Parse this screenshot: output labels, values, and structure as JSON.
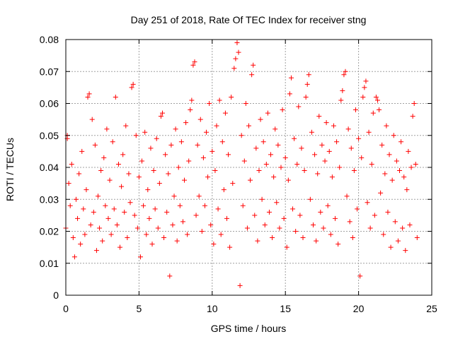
{
  "chart_data": {
    "type": "scatter",
    "title": "Day 251 of 2018, Rate Of TEC Index for receiver stng",
    "xlabel": "GPS time / hours",
    "ylabel": "ROTI / TECUs",
    "xlim": [
      0,
      25
    ],
    "ylim": [
      0,
      0.08
    ],
    "xticks": [
      0,
      5,
      10,
      15,
      20,
      25
    ],
    "xtick_labels": [
      "0",
      "5",
      "10",
      "15",
      "20",
      "25"
    ],
    "yticks": [
      0,
      0.01,
      0.02,
      0.03,
      0.04,
      0.05,
      0.06,
      0.07,
      0.08
    ],
    "ytick_labels": [
      "0",
      "0.01",
      "0.02",
      "0.03",
      "0.04",
      "0.05",
      "0.06",
      "0.07",
      "0.08"
    ],
    "grid": true,
    "marker": "+",
    "series_color": "#ff0000",
    "series": [
      {
        "name": "ROTI",
        "points": [
          [
            0.0,
            0.021
          ],
          [
            0.1,
            0.049
          ],
          [
            0.1,
            0.05
          ],
          [
            0.2,
            0.035
          ],
          [
            0.3,
            0.028
          ],
          [
            0.4,
            0.041
          ],
          [
            0.5,
            0.018
          ],
          [
            0.6,
            0.012
          ],
          [
            0.7,
            0.03
          ],
          [
            0.8,
            0.024
          ],
          [
            0.9,
            0.038
          ],
          [
            1.0,
            0.016
          ],
          [
            1.1,
            0.045
          ],
          [
            1.2,
            0.027
          ],
          [
            1.3,
            0.019
          ],
          [
            1.4,
            0.033
          ],
          [
            1.5,
            0.062
          ],
          [
            1.6,
            0.063
          ],
          [
            1.7,
            0.022
          ],
          [
            1.8,
            0.055
          ],
          [
            1.9,
            0.026
          ],
          [
            2.0,
            0.047
          ],
          [
            2.1,
            0.014
          ],
          [
            2.2,
            0.031
          ],
          [
            2.3,
            0.021
          ],
          [
            2.4,
            0.039
          ],
          [
            2.5,
            0.017
          ],
          [
            2.6,
            0.043
          ],
          [
            2.7,
            0.028
          ],
          [
            2.8,
            0.052
          ],
          [
            2.9,
            0.024
          ],
          [
            3.0,
            0.036
          ],
          [
            3.1,
            0.019
          ],
          [
            3.2,
            0.048
          ],
          [
            3.3,
            0.027
          ],
          [
            3.4,
            0.062
          ],
          [
            3.5,
            0.022
          ],
          [
            3.6,
            0.041
          ],
          [
            3.7,
            0.015
          ],
          [
            3.8,
            0.034
          ],
          [
            3.9,
            0.044
          ],
          [
            4.0,
            0.026
          ],
          [
            4.1,
            0.053
          ],
          [
            4.2,
            0.018
          ],
          [
            4.3,
            0.038
          ],
          [
            4.4,
            0.029
          ],
          [
            4.5,
            0.065
          ],
          [
            4.6,
            0.066
          ],
          [
            4.7,
            0.025
          ],
          [
            4.8,
            0.05
          ],
          [
            4.9,
            0.021
          ],
          [
            5.0,
            0.037
          ],
          [
            5.1,
            0.012
          ],
          [
            5.2,
            0.042
          ],
          [
            5.3,
            0.028
          ],
          [
            5.4,
            0.051
          ],
          [
            5.5,
            0.019
          ],
          [
            5.6,
            0.033
          ],
          [
            5.7,
            0.024
          ],
          [
            5.8,
            0.046
          ],
          [
            5.9,
            0.016
          ],
          [
            6.0,
            0.039
          ],
          [
            6.1,
            0.027
          ],
          [
            6.2,
            0.049
          ],
          [
            6.3,
            0.021
          ],
          [
            6.4,
            0.035
          ],
          [
            6.5,
            0.056
          ],
          [
            6.6,
            0.057
          ],
          [
            6.7,
            0.018
          ],
          [
            6.8,
            0.044
          ],
          [
            6.9,
            0.026
          ],
          [
            7.0,
            0.038
          ],
          [
            7.1,
            0.006
          ],
          [
            7.2,
            0.047
          ],
          [
            7.3,
            0.022
          ],
          [
            7.4,
            0.031
          ],
          [
            7.5,
            0.052
          ],
          [
            7.6,
            0.017
          ],
          [
            7.7,
            0.04
          ],
          [
            7.8,
            0.028
          ],
          [
            7.9,
            0.048
          ],
          [
            8.0,
            0.023
          ],
          [
            8.1,
            0.036
          ],
          [
            8.2,
            0.054
          ],
          [
            8.3,
            0.019
          ],
          [
            8.4,
            0.042
          ],
          [
            8.5,
            0.058
          ],
          [
            8.6,
            0.061
          ],
          [
            8.7,
            0.072
          ],
          [
            8.8,
            0.073
          ],
          [
            8.9,
            0.025
          ],
          [
            9.0,
            0.047
          ],
          [
            9.1,
            0.031
          ],
          [
            9.2,
            0.055
          ],
          [
            9.3,
            0.02
          ],
          [
            9.4,
            0.043
          ],
          [
            9.5,
            0.028
          ],
          [
            9.6,
            0.051
          ],
          [
            9.7,
            0.037
          ],
          [
            9.8,
            0.06
          ],
          [
            9.9,
            0.022
          ],
          [
            10.0,
            0.045
          ],
          [
            10.1,
            0.016
          ],
          [
            10.2,
            0.039
          ],
          [
            10.3,
            0.053
          ],
          [
            10.4,
            0.027
          ],
          [
            10.5,
            0.061
          ],
          [
            10.6,
            0.019
          ],
          [
            10.7,
            0.048
          ],
          [
            10.8,
            0.033
          ],
          [
            10.9,
            0.057
          ],
          [
            11.0,
            0.024
          ],
          [
            11.1,
            0.044
          ],
          [
            11.2,
            0.015
          ],
          [
            11.3,
            0.062
          ],
          [
            11.4,
            0.035
          ],
          [
            11.5,
            0.071
          ],
          [
            11.6,
            0.074
          ],
          [
            11.7,
            0.079
          ],
          [
            11.8,
            0.076
          ],
          [
            11.9,
            0.003
          ],
          [
            12.0,
            0.05
          ],
          [
            12.1,
            0.028
          ],
          [
            12.2,
            0.042
          ],
          [
            12.3,
            0.06
          ],
          [
            12.4,
            0.021
          ],
          [
            12.5,
            0.053
          ],
          [
            12.6,
            0.036
          ],
          [
            12.7,
            0.069
          ],
          [
            12.8,
            0.072
          ],
          [
            12.9,
            0.025
          ],
          [
            13.0,
            0.046
          ],
          [
            13.1,
            0.017
          ],
          [
            13.2,
            0.039
          ],
          [
            13.3,
            0.055
          ],
          [
            13.4,
            0.03
          ],
          [
            13.5,
            0.048
          ],
          [
            13.6,
            0.022
          ],
          [
            13.7,
            0.041
          ],
          [
            13.8,
            0.057
          ],
          [
            13.9,
            0.026
          ],
          [
            14.0,
            0.044
          ],
          [
            14.1,
            0.018
          ],
          [
            14.2,
            0.037
          ],
          [
            14.3,
            0.052
          ],
          [
            14.4,
            0.029
          ],
          [
            14.5,
            0.047
          ],
          [
            14.6,
            0.021
          ],
          [
            14.7,
            0.04
          ],
          [
            14.8,
            0.058
          ],
          [
            14.9,
            0.024
          ],
          [
            15.0,
            0.043
          ],
          [
            15.1,
            0.015
          ],
          [
            15.2,
            0.036
          ],
          [
            15.3,
            0.063
          ],
          [
            15.4,
            0.068
          ],
          [
            15.5,
            0.027
          ],
          [
            15.6,
            0.049
          ],
          [
            15.7,
            0.02
          ],
          [
            15.8,
            0.041
          ],
          [
            15.9,
            0.059
          ],
          [
            16.0,
            0.025
          ],
          [
            16.1,
            0.046
          ],
          [
            16.2,
            0.018
          ],
          [
            16.3,
            0.039
          ],
          [
            16.4,
            0.062
          ],
          [
            16.5,
            0.066
          ],
          [
            16.6,
            0.069
          ],
          [
            16.7,
            0.03
          ],
          [
            16.8,
            0.051
          ],
          [
            16.9,
            0.022
          ],
          [
            17.0,
            0.044
          ],
          [
            17.1,
            0.017
          ],
          [
            17.2,
            0.038
          ],
          [
            17.3,
            0.056
          ],
          [
            17.4,
            0.026
          ],
          [
            17.5,
            0.047
          ],
          [
            17.6,
            0.021
          ],
          [
            17.7,
            0.042
          ],
          [
            17.8,
            0.054
          ],
          [
            17.9,
            0.028
          ],
          [
            18.0,
            0.045
          ],
          [
            18.1,
            0.019
          ],
          [
            18.2,
            0.037
          ],
          [
            18.3,
            0.053
          ],
          [
            18.4,
            0.024
          ],
          [
            18.5,
            0.048
          ],
          [
            18.6,
            0.016
          ],
          [
            18.7,
            0.04
          ],
          [
            18.8,
            0.061
          ],
          [
            18.9,
            0.064
          ],
          [
            19.0,
            0.069
          ],
          [
            19.1,
            0.07
          ],
          [
            19.2,
            0.031
          ],
          [
            19.3,
            0.052
          ],
          [
            19.4,
            0.023
          ],
          [
            19.5,
            0.046
          ],
          [
            19.6,
            0.018
          ],
          [
            19.7,
            0.039
          ],
          [
            19.8,
            0.058
          ],
          [
            19.9,
            0.027
          ],
          [
            20.0,
            0.049
          ],
          [
            20.1,
            0.006
          ],
          [
            20.2,
            0.043
          ],
          [
            20.3,
            0.062
          ],
          [
            20.4,
            0.065
          ],
          [
            20.5,
            0.067
          ],
          [
            20.6,
            0.029
          ],
          [
            20.7,
            0.051
          ],
          [
            20.8,
            0.021
          ],
          [
            20.9,
            0.041
          ],
          [
            21.0,
            0.057
          ],
          [
            21.1,
            0.025
          ],
          [
            21.2,
            0.062
          ],
          [
            21.3,
            0.061
          ],
          [
            21.4,
            0.058
          ],
          [
            21.5,
            0.032
          ],
          [
            21.6,
            0.047
          ],
          [
            21.7,
            0.019
          ],
          [
            21.8,
            0.038
          ],
          [
            21.9,
            0.053
          ],
          [
            22.0,
            0.026
          ],
          [
            22.1,
            0.044
          ],
          [
            22.2,
            0.015
          ],
          [
            22.3,
            0.036
          ],
          [
            22.4,
            0.05
          ],
          [
            22.5,
            0.023
          ],
          [
            22.6,
            0.042
          ],
          [
            22.7,
            0.017
          ],
          [
            22.8,
            0.039
          ],
          [
            22.9,
            0.048
          ],
          [
            23.0,
            0.021
          ],
          [
            23.1,
            0.037
          ],
          [
            23.2,
            0.014
          ],
          [
            23.3,
            0.033
          ],
          [
            23.4,
            0.045
          ],
          [
            23.5,
            0.022
          ],
          [
            23.6,
            0.04
          ],
          [
            23.7,
            0.056
          ],
          [
            23.8,
            0.06
          ],
          [
            23.9,
            0.041
          ],
          [
            24.0,
            0.018
          ]
        ]
      }
    ]
  }
}
